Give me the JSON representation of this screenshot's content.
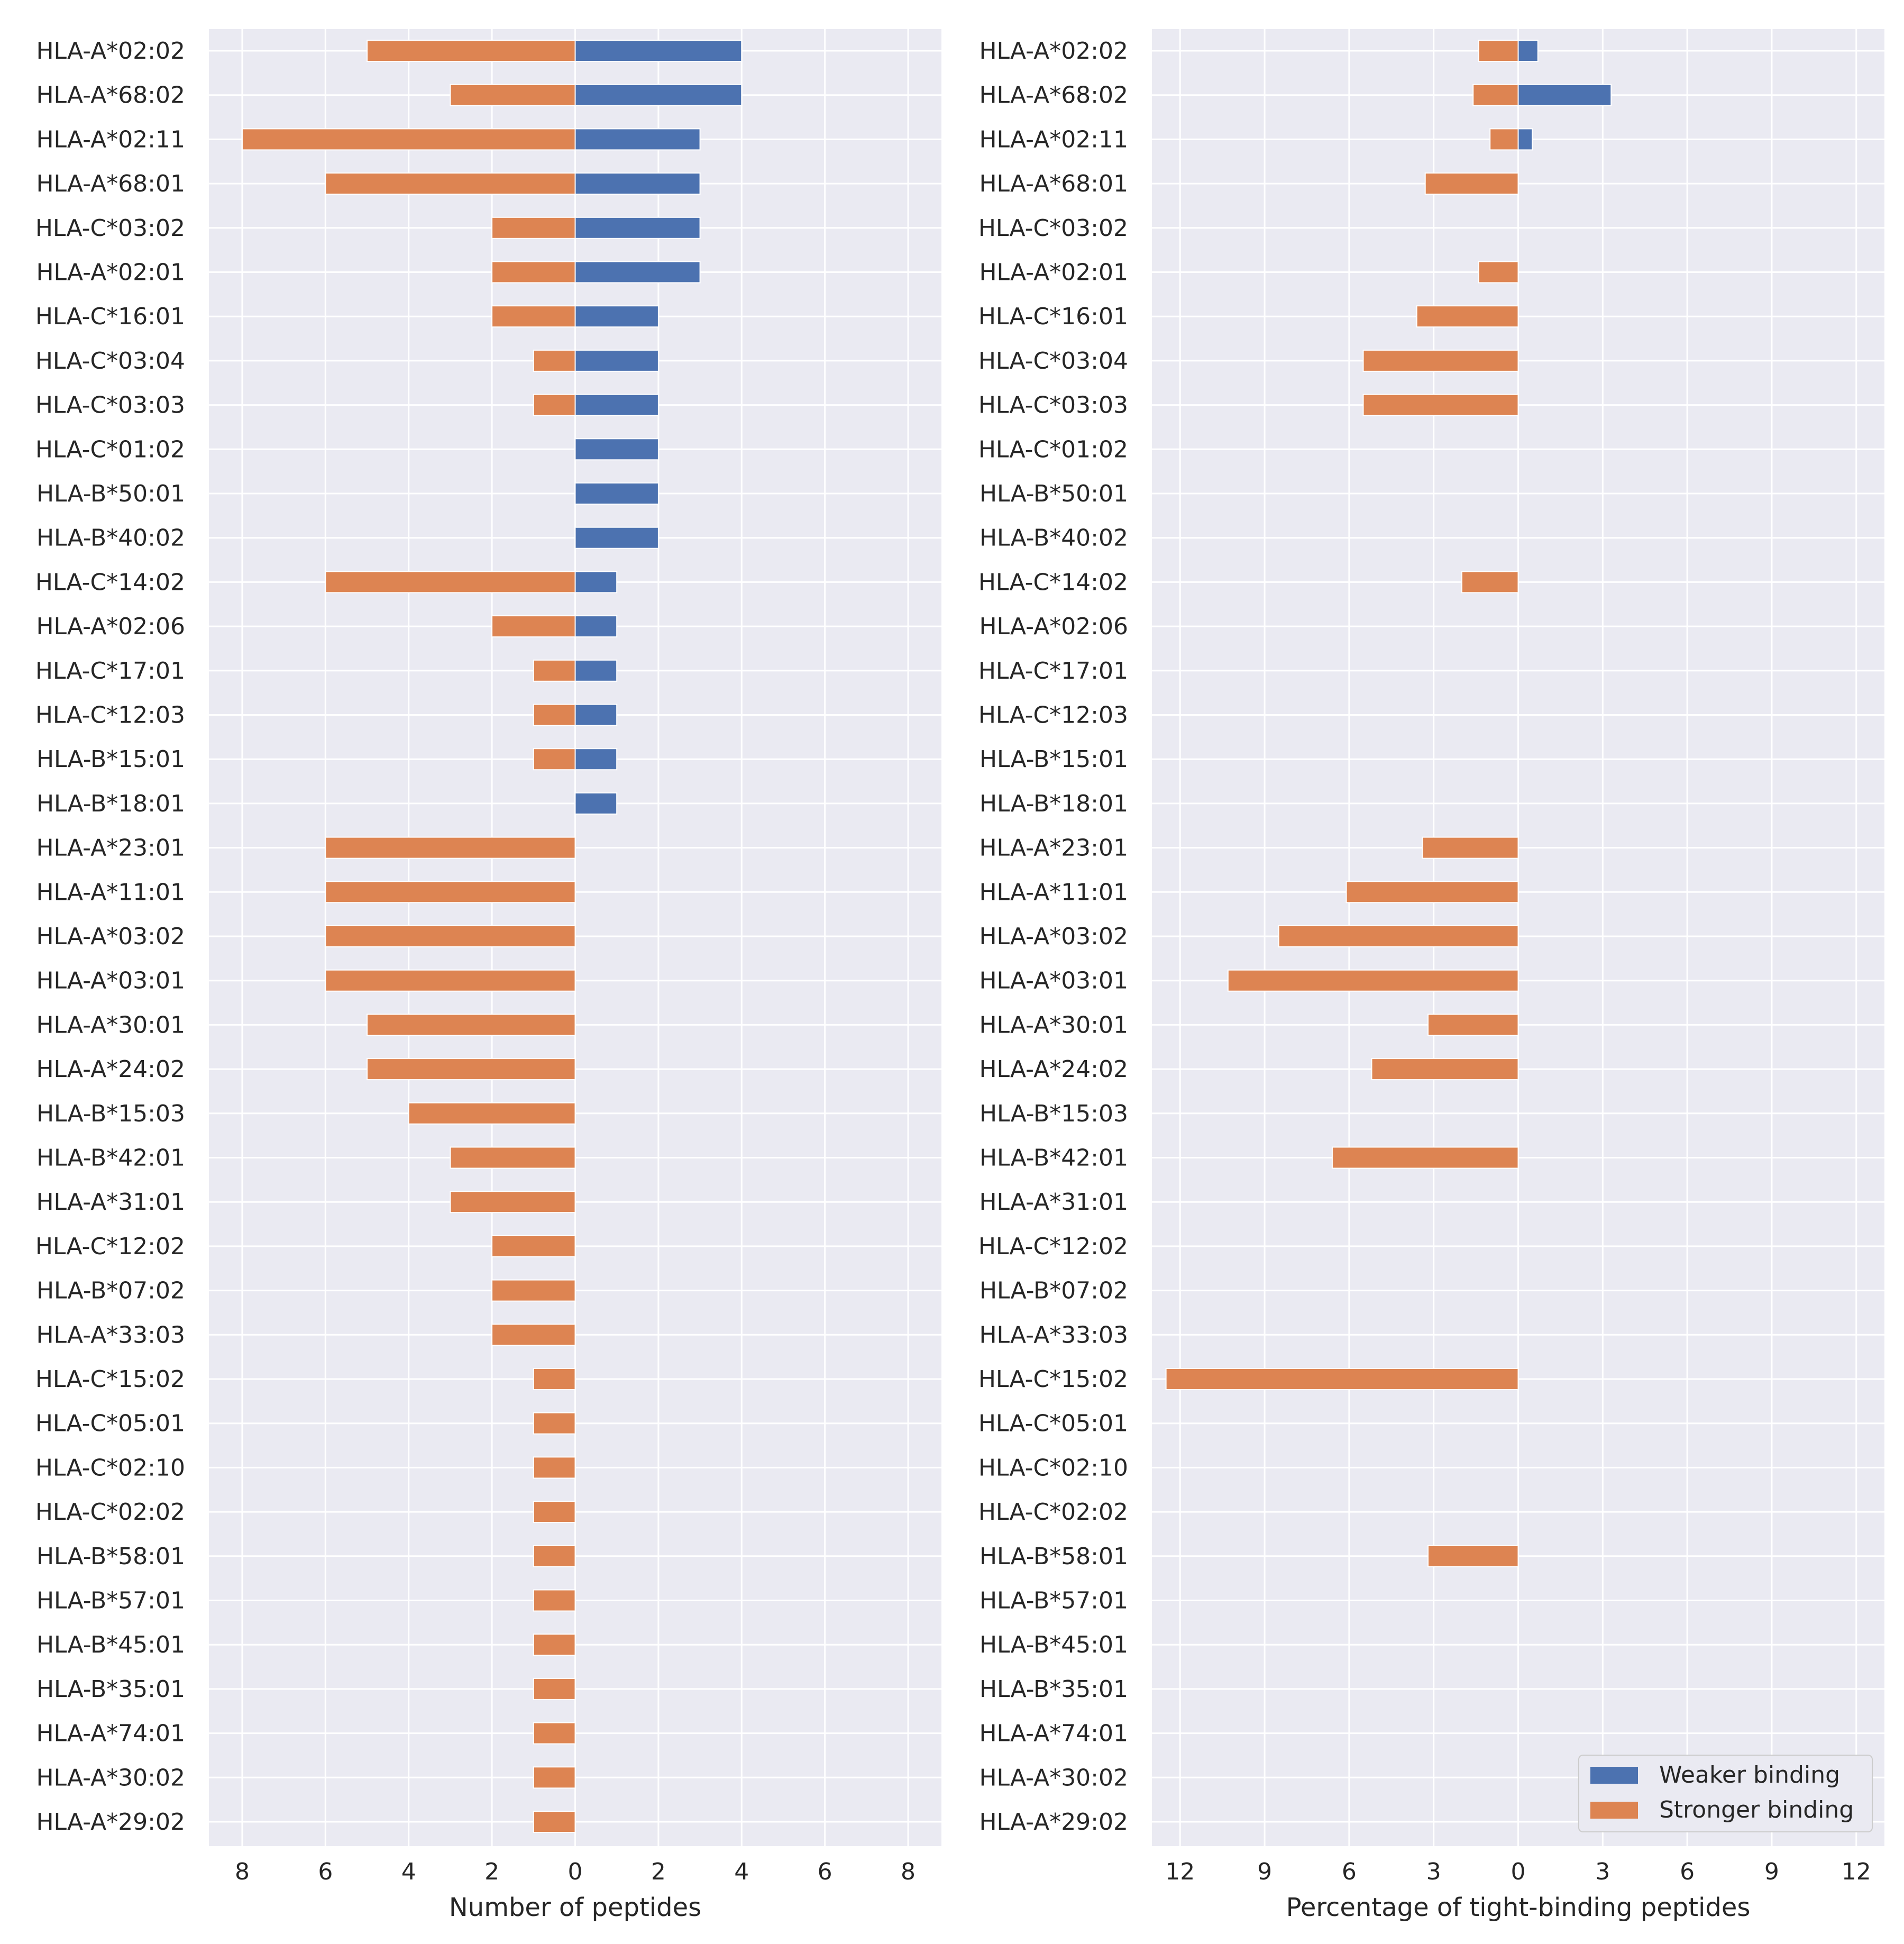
{
  "colors": {
    "weaker": "#4c72b0",
    "stronger": "#dd8452",
    "plot_bg": "#eaeaf2",
    "grid": "#ffffff",
    "text": "#262626"
  },
  "legend": {
    "placement": "lower-right",
    "entries": [
      "Weaker binding",
      "Stronger binding"
    ]
  },
  "chart_data": [
    {
      "type": "bar",
      "orientation": "horizontal-diverging",
      "xlabel": "Number of peptides",
      "xlim": [
        -8.8,
        8.8
      ],
      "xticks": [
        -8,
        -6,
        -4,
        -2,
        0,
        2,
        4,
        6,
        8
      ],
      "xtick_labels": [
        "8",
        "6",
        "4",
        "2",
        "0",
        "2",
        "4",
        "6",
        "8"
      ],
      "grid": true,
      "categories": [
        "HLA-A*02:02",
        "HLA-A*68:02",
        "HLA-A*02:11",
        "HLA-A*68:01",
        "HLA-C*03:02",
        "HLA-A*02:01",
        "HLA-C*16:01",
        "HLA-C*03:04",
        "HLA-C*03:03",
        "HLA-C*01:02",
        "HLA-B*50:01",
        "HLA-B*40:02",
        "HLA-C*14:02",
        "HLA-A*02:06",
        "HLA-C*17:01",
        "HLA-C*12:03",
        "HLA-B*15:01",
        "HLA-B*18:01",
        "HLA-A*23:01",
        "HLA-A*11:01",
        "HLA-A*03:02",
        "HLA-A*03:01",
        "HLA-A*30:01",
        "HLA-A*24:02",
        "HLA-B*15:03",
        "HLA-B*42:01",
        "HLA-A*31:01",
        "HLA-C*12:02",
        "HLA-B*07:02",
        "HLA-A*33:03",
        "HLA-C*15:02",
        "HLA-C*05:01",
        "HLA-C*02:10",
        "HLA-C*02:02",
        "HLA-B*58:01",
        "HLA-B*57:01",
        "HLA-B*45:01",
        "HLA-B*35:01",
        "HLA-A*74:01",
        "HLA-A*30:02",
        "HLA-A*29:02"
      ],
      "series": [
        {
          "name": "Weaker binding",
          "direction": "right",
          "values": [
            4,
            4,
            3,
            3,
            3,
            3,
            2,
            2,
            2,
            2,
            2,
            2,
            1,
            1,
            1,
            1,
            1,
            1,
            0,
            0,
            0,
            0,
            0,
            0,
            0,
            0,
            0,
            0,
            0,
            0,
            0,
            0,
            0,
            0,
            0,
            0,
            0,
            0,
            0,
            0,
            0
          ]
        },
        {
          "name": "Stronger binding",
          "direction": "left",
          "values": [
            5,
            3,
            8,
            6,
            2,
            2,
            2,
            1,
            1,
            0,
            0,
            0,
            6,
            2,
            1,
            1,
            1,
            0,
            6,
            6,
            6,
            6,
            5,
            5,
            4,
            3,
            3,
            2,
            2,
            2,
            1,
            1,
            1,
            1,
            1,
            1,
            1,
            1,
            1,
            1,
            1
          ]
        }
      ]
    },
    {
      "type": "bar",
      "orientation": "horizontal-diverging",
      "xlabel": "Percentage of tight-binding peptides",
      "xlim": [
        -13.0,
        13.0
      ],
      "xticks": [
        -12,
        -9,
        -6,
        -3,
        0,
        3,
        6,
        9,
        12
      ],
      "xtick_labels": [
        "12",
        "9",
        "6",
        "3",
        "0",
        "3",
        "6",
        "9",
        "12"
      ],
      "grid": true,
      "categories": [
        "HLA-A*02:02",
        "HLA-A*68:02",
        "HLA-A*02:11",
        "HLA-A*68:01",
        "HLA-C*03:02",
        "HLA-A*02:01",
        "HLA-C*16:01",
        "HLA-C*03:04",
        "HLA-C*03:03",
        "HLA-C*01:02",
        "HLA-B*50:01",
        "HLA-B*40:02",
        "HLA-C*14:02",
        "HLA-A*02:06",
        "HLA-C*17:01",
        "HLA-C*12:03",
        "HLA-B*15:01",
        "HLA-B*18:01",
        "HLA-A*23:01",
        "HLA-A*11:01",
        "HLA-A*03:02",
        "HLA-A*03:01",
        "HLA-A*30:01",
        "HLA-A*24:02",
        "HLA-B*15:03",
        "HLA-B*42:01",
        "HLA-A*31:01",
        "HLA-C*12:02",
        "HLA-B*07:02",
        "HLA-A*33:03",
        "HLA-C*15:02",
        "HLA-C*05:01",
        "HLA-C*02:10",
        "HLA-C*02:02",
        "HLA-B*58:01",
        "HLA-B*57:01",
        "HLA-B*45:01",
        "HLA-B*35:01",
        "HLA-A*74:01",
        "HLA-A*30:02",
        "HLA-A*29:02"
      ],
      "series": [
        {
          "name": "Weaker binding",
          "direction": "right",
          "values": [
            0.7,
            3.3,
            0.5,
            0,
            0,
            0,
            0,
            0,
            0,
            0,
            0,
            0,
            0,
            0,
            0,
            0,
            0,
            0,
            0,
            0,
            0,
            0,
            0,
            0,
            0,
            0,
            0,
            0,
            0,
            0,
            0,
            0,
            0,
            0,
            0,
            0,
            0,
            0,
            0,
            0,
            0
          ]
        },
        {
          "name": "Stronger binding",
          "direction": "left",
          "values": [
            1.4,
            1.6,
            1.0,
            3.3,
            0,
            1.4,
            3.6,
            5.5,
            5.5,
            0,
            0,
            0,
            2.0,
            0,
            0,
            0,
            0,
            0,
            3.4,
            6.1,
            8.5,
            10.3,
            3.2,
            5.2,
            0,
            6.6,
            0,
            0,
            0,
            0,
            12.5,
            0,
            0,
            0,
            3.2,
            0,
            0,
            0,
            0,
            0,
            0
          ]
        }
      ]
    }
  ]
}
